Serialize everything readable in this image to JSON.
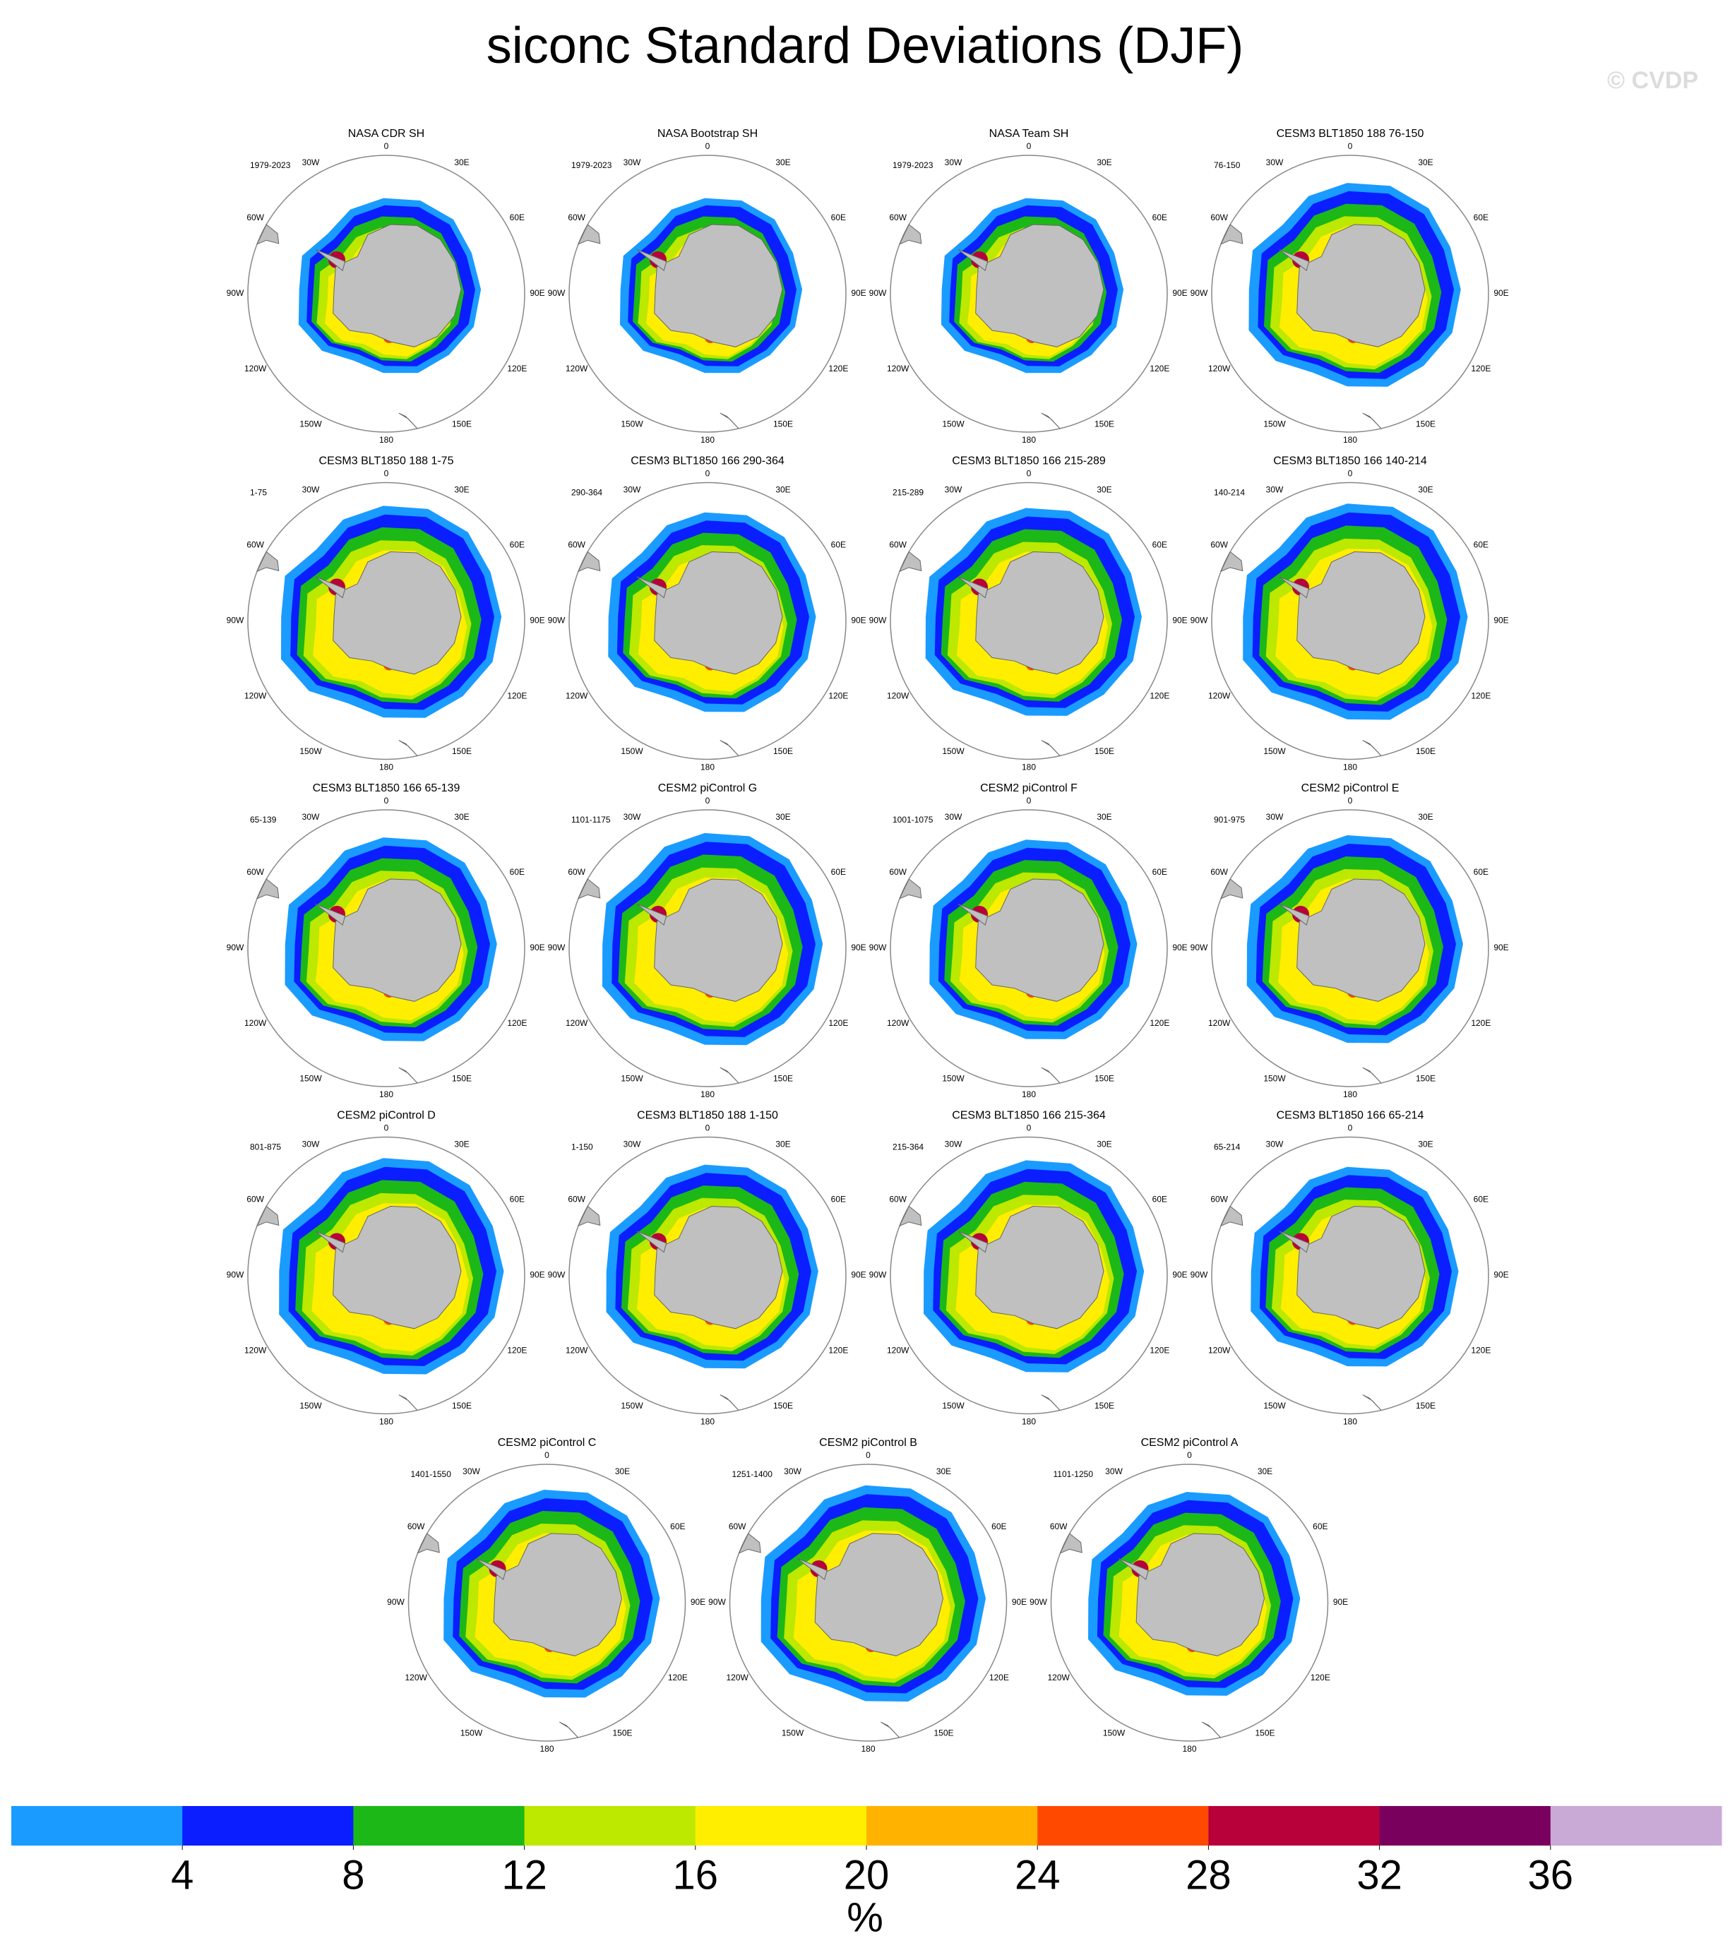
{
  "title": "siconc Standard Deviations (DJF)",
  "watermark": "© CVDP",
  "lon_labels": [
    "0",
    "30E",
    "60E",
    "90E",
    "120E",
    "150E",
    "180",
    "150W",
    "120W",
    "90W",
    "60W",
    "30W"
  ],
  "panels": [
    {
      "title": "NASA CDR SH",
      "period": "1979-2023"
    },
    {
      "title": "NASA Bootstrap SH",
      "period": "1979-2023"
    },
    {
      "title": "NASA Team SH",
      "period": "1979-2023"
    },
    {
      "title": "CESM3 BLT1850 188 76-150",
      "period": "76-150"
    },
    {
      "title": "CESM3 BLT1850 188 1-75",
      "period": "1-75"
    },
    {
      "title": "CESM3 BLT1850 166 290-364",
      "period": "290-364"
    },
    {
      "title": "CESM3 BLT1850 166 215-289",
      "period": "215-289"
    },
    {
      "title": "CESM3 BLT1850 166 140-214",
      "period": "140-214"
    },
    {
      "title": "CESM3 BLT1850 166 65-139",
      "period": "65-139"
    },
    {
      "title": "CESM2 piControl G",
      "period": "1101-1175"
    },
    {
      "title": "CESM2 piControl F",
      "period": "1001-1075"
    },
    {
      "title": "CESM2 piControl E",
      "period": "901-975"
    },
    {
      "title": "CESM2 piControl D",
      "period": "801-875"
    },
    {
      "title": "CESM3 BLT1850 188 1-150",
      "period": "1-150"
    },
    {
      "title": "CESM3 BLT1850 166 215-364",
      "period": "215-364"
    },
    {
      "title": "CESM3 BLT1850 166 65-214",
      "period": "65-214"
    },
    {
      "title": "CESM2 piControl C",
      "period": "1401-1550"
    },
    {
      "title": "CESM2 piControl B",
      "period": "1251-1400"
    },
    {
      "title": "CESM2 piControl A",
      "period": "1101-1250"
    }
  ],
  "colorbar": {
    "levels": [
      4,
      8,
      12,
      16,
      20,
      24,
      28,
      32,
      36
    ],
    "colors": [
      "#1a9bff",
      "#0a1eff",
      "#1cb818",
      "#bde800",
      "#ffee00",
      "#ffb300",
      "#ff4800",
      "#b8003a",
      "#7a005e",
      "#c9aad6"
    ],
    "unit": "%"
  }
}
